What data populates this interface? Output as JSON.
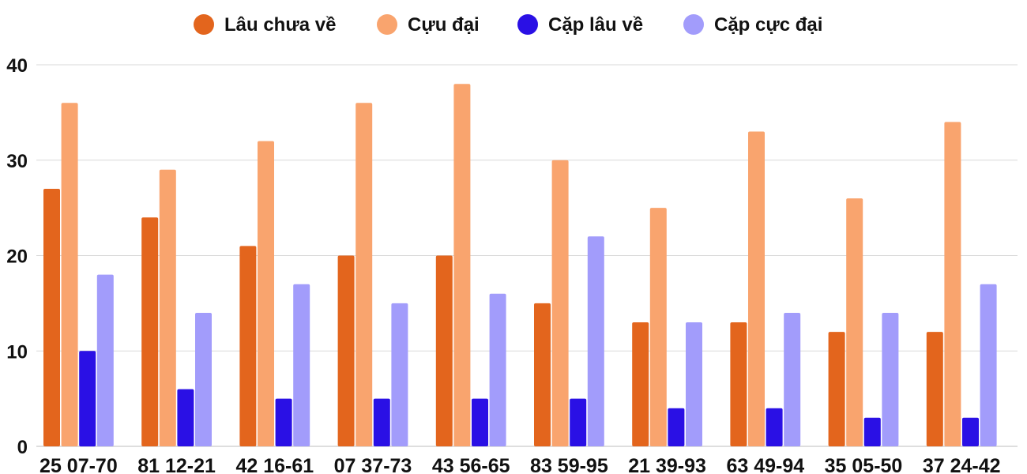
{
  "chart_data": {
    "type": "bar",
    "categories": [
      "25 07-70",
      "81 12-21",
      "42 16-61",
      "07 37-73",
      "43 56-65",
      "83 59-95",
      "21 39-93",
      "63 49-94",
      "35 05-50",
      "37 24-42"
    ],
    "series": [
      {
        "name": "Lâu chưa về",
        "color": "#e3651d",
        "values": [
          27,
          24,
          21,
          20,
          20,
          15,
          13,
          13,
          12,
          12
        ]
      },
      {
        "name": "Cựu đại",
        "color": "#f9a46e",
        "values": [
          36,
          29,
          32,
          36,
          38,
          30,
          25,
          33,
          26,
          34
        ]
      },
      {
        "name": "Cặp lâu về",
        "color": "#2a10e5",
        "values": [
          10,
          6,
          5,
          5,
          5,
          5,
          4,
          4,
          3,
          3
        ]
      },
      {
        "name": "Cặp cực đại",
        "color": "#a29cfb",
        "values": [
          18,
          14,
          17,
          15,
          16,
          22,
          13,
          14,
          14,
          17
        ]
      }
    ],
    "ylim": [
      0,
      40
    ],
    "yticks": [
      0,
      10,
      20,
      30,
      40
    ],
    "grid": true,
    "legend_position": "top-center"
  }
}
